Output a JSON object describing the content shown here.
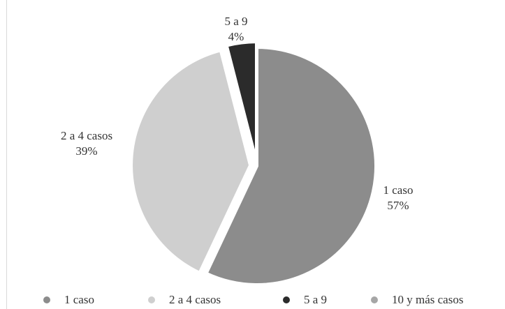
{
  "chart_data": {
    "type": "pie",
    "title": "",
    "slices": [
      {
        "name": "1 caso",
        "value": 57,
        "label_line1": "1 caso",
        "label_line2": "57%",
        "color": "#8c8c8c"
      },
      {
        "name": "2 a 4 casos",
        "value": 39,
        "label_line1": "2 a 4 casos",
        "label_line2": "39%",
        "color": "#cfcfcf"
      },
      {
        "name": "5 a 9",
        "value": 4,
        "label_line1": "5 a 9",
        "label_line2": "4%",
        "color": "#2b2b2b"
      },
      {
        "name": "10 y más casos",
        "value": 0,
        "label_line1": "",
        "label_line2": "",
        "color": "#a6a6a6"
      }
    ],
    "legend": {
      "position": "bottom",
      "entries": [
        "1 caso",
        "2 a 4 casos",
        "5 a 9",
        "10 y más casos"
      ]
    }
  }
}
